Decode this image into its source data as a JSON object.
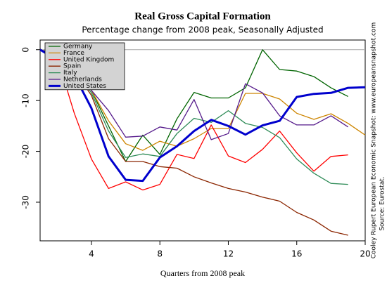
{
  "chart_data": {
    "type": "line",
    "title": "Real Gross Capital Formation",
    "subtitle": "Percentage change from 2008 peak, Seasonally Adjusted",
    "x_label": "Quarters from 2008 peak",
    "notes": [
      "Cooley Rupert European Economic Snapshot: www.europeansnapshot.com",
      "Source: Eurostat."
    ],
    "x": [
      1,
      2,
      3,
      4,
      5,
      6,
      7,
      8,
      9,
      10,
      11,
      12,
      13,
      14,
      15,
      16,
      17,
      18,
      19,
      20
    ],
    "xlim": [
      1,
      20
    ],
    "xticks": [
      4,
      8,
      12,
      16,
      20
    ],
    "ylim": [
      -37.6,
      1.9
    ],
    "yticks": [
      0,
      -10,
      -20,
      -30
    ],
    "reference_line": 0,
    "legend": "top-left",
    "series": [
      {
        "name": "Germany",
        "color": "#006400",
        "width": 1.3,
        "values": [
          0,
          -2,
          -4,
          -8,
          -15,
          -22,
          -16.8,
          -20.6,
          -13.6,
          -8.4,
          -9.5,
          -9.5,
          -7.5,
          0,
          -3.9,
          -4.2,
          -5.3,
          -7.5,
          -9.2,
          null
        ]
      },
      {
        "name": "France",
        "color": "#cd8500",
        "width": 1.3,
        "values": [
          0,
          -1,
          -3,
          -8,
          -14,
          -18.5,
          -19.8,
          -18,
          -19,
          -17.5,
          -15.5,
          -15.5,
          -8.6,
          -8.6,
          -9.7,
          -12.5,
          -13.7,
          -12.6,
          -14.5,
          -16.8
        ]
      },
      {
        "name": "United Kingdom",
        "color": "#ff0000",
        "width": 1.3,
        "values": [
          0,
          -1.5,
          -12.5,
          -21.5,
          -27.3,
          -26,
          -27.6,
          -26.5,
          -20.6,
          -21.4,
          -14.8,
          -20.9,
          -22.2,
          -19.6,
          -16,
          -20.3,
          -23.9,
          -21,
          -20.7,
          null
        ]
      },
      {
        "name": "Spain",
        "color": "#8b2500",
        "width": 1.3,
        "values": [
          0,
          -1,
          -4,
          -9,
          -17.5,
          -22,
          -22,
          -23,
          -23.3,
          -25,
          -26.2,
          -27.3,
          -28,
          -29,
          -29.8,
          -32,
          -33.5,
          -35.7,
          -36.5,
          null
        ]
      },
      {
        "name": "Italy",
        "color": "#2e8b57",
        "width": 1.3,
        "values": [
          0,
          -1,
          -3.5,
          -8.5,
          -16,
          -21.2,
          -20.5,
          -21,
          -16.5,
          -13.5,
          -14.3,
          -12,
          -14.5,
          -15.3,
          -17.3,
          -21.5,
          -24.3,
          -26.3,
          -26.5,
          null
        ]
      },
      {
        "name": "Netherlands",
        "color": "#551a8b",
        "width": 1.3,
        "values": [
          0,
          -1,
          -3,
          -8,
          -12,
          -17.2,
          -17,
          -15.2,
          -15.8,
          -9.8,
          -17.7,
          -16.5,
          -6.7,
          -8.5,
          -13,
          -14.8,
          -14.8,
          -13,
          -15.2,
          null
        ]
      },
      {
        "name": "United States",
        "color": "#0000cd",
        "width": 3,
        "values": [
          0,
          -2,
          -5,
          -11.5,
          -21,
          -25.6,
          -25.8,
          -21.2,
          -19,
          -16,
          -13.8,
          -15,
          -16.7,
          -14.9,
          -14,
          -9.3,
          -8.7,
          -8.5,
          -7.5,
          -7.4
        ]
      }
    ]
  }
}
